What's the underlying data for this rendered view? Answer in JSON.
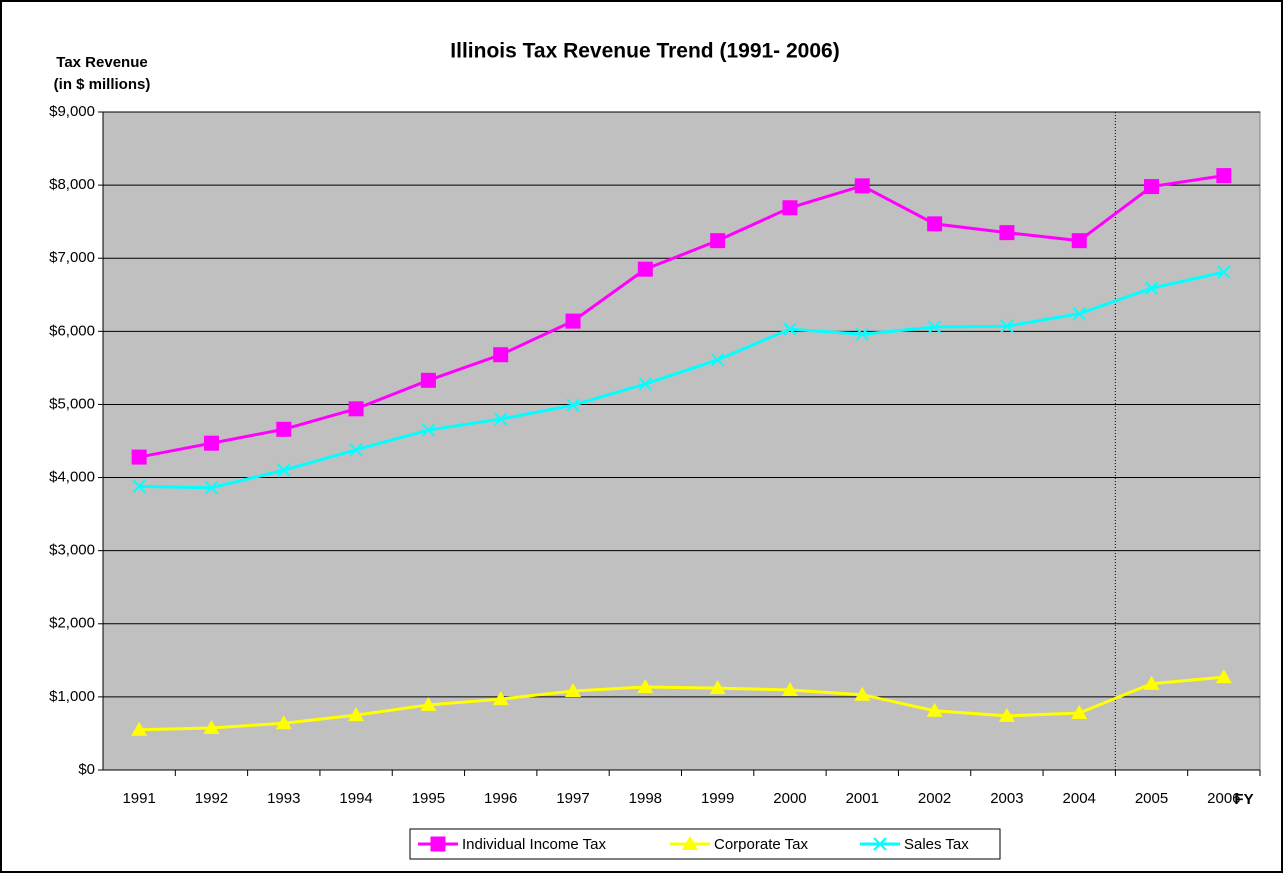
{
  "chart_data": {
    "type": "line",
    "title": "Illinois Tax Revenue Trend (1991- 2006)",
    "y_label": [
      "Tax Revenue",
      "(in $ millions)"
    ],
    "x_label": "FY",
    "categories": [
      "1991",
      "1992",
      "1993",
      "1994",
      "1995",
      "1996",
      "1997",
      "1998",
      "1999",
      "2000",
      "2001",
      "2002",
      "2003",
      "2004",
      "2005",
      "2006"
    ],
    "series": [
      {
        "name": "Individual Income Tax",
        "color": "#ff00ff",
        "marker": "square",
        "values": [
          4280,
          4470,
          4660,
          4940,
          5330,
          5680,
          6140,
          6850,
          7240,
          7690,
          7990,
          7470,
          7350,
          7240,
          7980,
          8130
        ]
      },
      {
        "name": "Corporate Tax",
        "color": "#ffff00",
        "marker": "triangle",
        "values": [
          550,
          575,
          640,
          750,
          890,
          970,
          1080,
          1135,
          1120,
          1095,
          1030,
          810,
          740,
          780,
          1180,
          1270
        ]
      },
      {
        "name": "Sales Tax",
        "color": "#00ffff",
        "marker": "x",
        "values": [
          3880,
          3860,
          4100,
          4380,
          4650,
          4800,
          4990,
          5280,
          5610,
          6030,
          5960,
          6060,
          6070,
          6240,
          6590,
          6810
        ]
      }
    ],
    "ylim": [
      0,
      9000
    ],
    "yticks": [
      {
        "value": 0,
        "label": "$0"
      },
      {
        "value": 1000,
        "label": "$1,000"
      },
      {
        "value": 2000,
        "label": "$2,000"
      },
      {
        "value": 3000,
        "label": "$3,000"
      },
      {
        "value": 4000,
        "label": "$4,000"
      },
      {
        "value": 5000,
        "label": "$5,000"
      },
      {
        "value": 6000,
        "label": "$6,000"
      },
      {
        "value": 7000,
        "label": "$7,000"
      },
      {
        "value": 8000,
        "label": "$8,000"
      },
      {
        "value": 9000,
        "label": "$9,000"
      }
    ],
    "grid": true,
    "legend": "bottom"
  }
}
